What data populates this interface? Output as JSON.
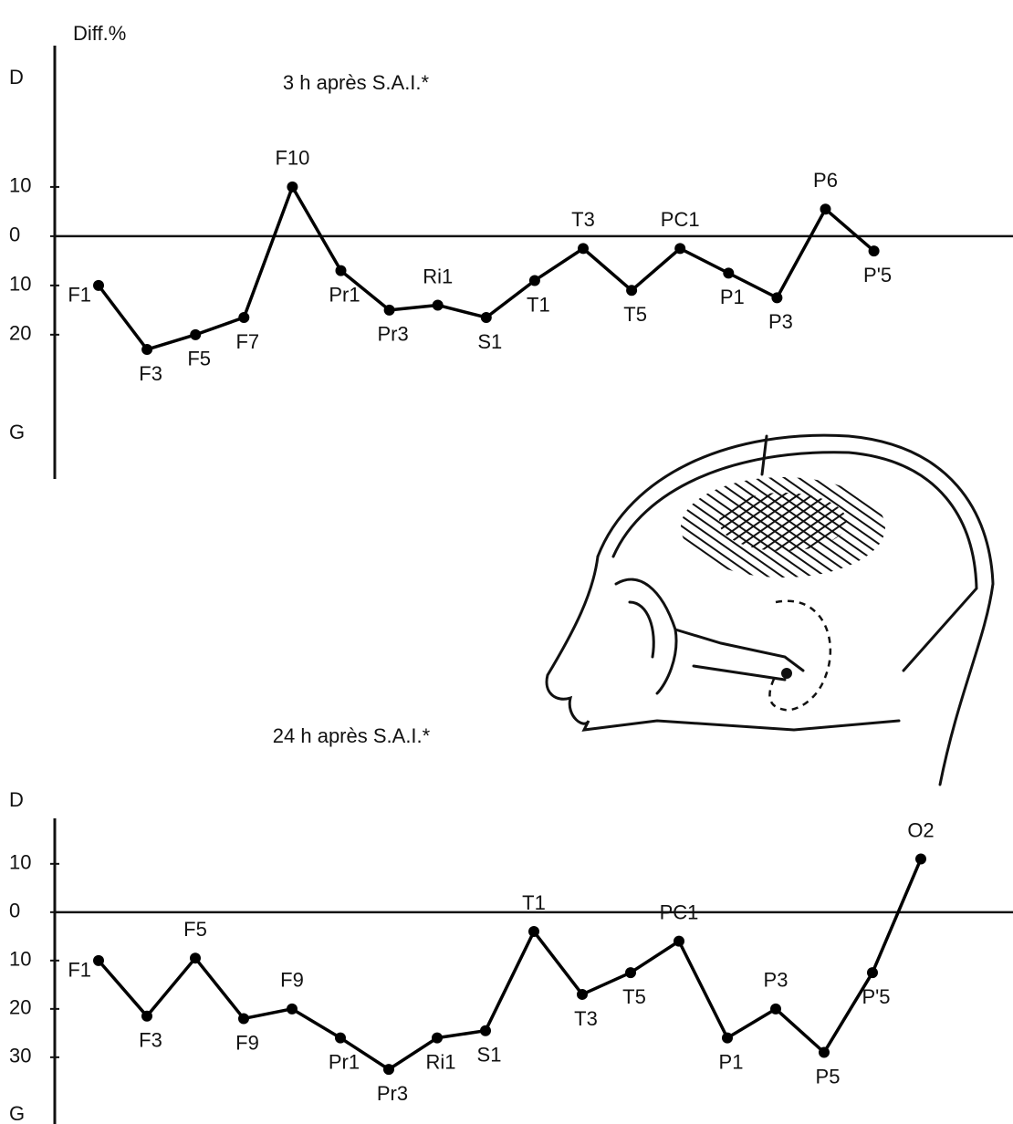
{
  "chart_data": [
    {
      "type": "line",
      "title": "3 h après S.A.I.*",
      "ylabel": "Diff.%",
      "y_top_label": "D",
      "y_bottom_label": "G",
      "categories": [
        "F1",
        "F3",
        "F5",
        "F7",
        "F10",
        "Pr1",
        "Pr3",
        "Ri1",
        "S1",
        "T1",
        "T3",
        "T5",
        "PC1",
        "P1",
        "P3",
        "P6",
        "P'5"
      ],
      "values": [
        -10,
        -23,
        -20,
        -16.5,
        10,
        -7,
        -15,
        -14,
        -16.5,
        -9,
        -2.5,
        -11,
        -2.5,
        -7.5,
        -12.5,
        5.5,
        -3
      ],
      "color": "#000000",
      "ylim": [
        -49.3,
        38.7
      ],
      "yticks": [
        {
          "value": 10,
          "label": "10"
        },
        0,
        {
          "value": -10,
          "label": "10"
        },
        {
          "value": -20,
          "label": "20"
        }
      ],
      "zero_line": true
    },
    {
      "type": "line",
      "title": "24 h après S.A.I.*",
      "y_top_label": "D",
      "y_bottom_label": "G",
      "categories": [
        "F1",
        "F3",
        "F5",
        "F9",
        "F9",
        "Pr1",
        "Pr3",
        "Ri1",
        "S1",
        "T1",
        "T3",
        "T5",
        "PC1",
        "P1",
        "P3",
        "P5",
        "P'5",
        "O2"
      ],
      "values": [
        -10,
        -21.5,
        -9.5,
        -22,
        -20,
        -26,
        -32.5,
        -26,
        -24.5,
        -4,
        -17,
        -12.5,
        -6,
        -26,
        -20,
        -29,
        -12.5,
        11
      ],
      "color": "#000000",
      "ylim": [
        -43.8,
        19.4
      ],
      "yticks": [
        {
          "value": 10,
          "label": "10"
        },
        0,
        {
          "value": -10,
          "label": "10"
        },
        {
          "value": -20,
          "label": "20"
        },
        {
          "value": -30,
          "label": "30"
        }
      ],
      "zero_line": true
    }
  ]
}
